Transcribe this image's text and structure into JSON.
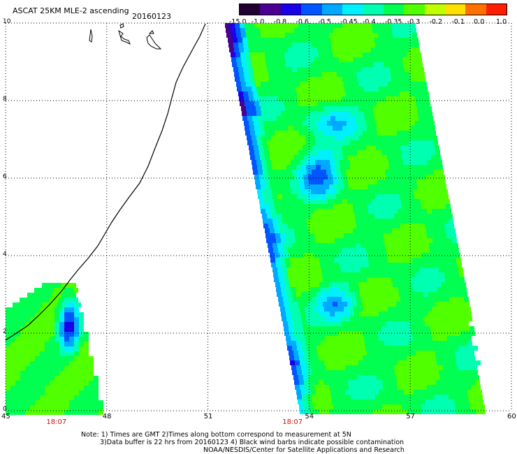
{
  "map": {
    "title": "ASCAT 25KM MLE-2 ascending",
    "date": "20160123",
    "lon_ticks": [
      "45",
      "48",
      "51",
      "54",
      "57",
      "60"
    ],
    "lat_ticks": [
      "0",
      "2",
      "4",
      "6",
      "8",
      "10"
    ],
    "lon_range": [
      45,
      60
    ],
    "lat_range": [
      0,
      10
    ],
    "pass_times": [
      {
        "lon": 46.5,
        "label": "18:07"
      },
      {
        "lon": 53.5,
        "label": "18:07"
      }
    ],
    "time_label_color": "#c0150f",
    "grid": "dotted"
  },
  "colorbar": {
    "labels": [
      "-15.0",
      "-1.0",
      "-0.8",
      "-0.6",
      "-0.5",
      "-0.45",
      "-0.4",
      "-0.35",
      "-0.3",
      "-0.2",
      "-0.1",
      "0.0",
      "1.0"
    ],
    "colors": [
      "#200030",
      "#4a0090",
      "#1a00e6",
      "#0055ff",
      "#00a8ff",
      "#00f0ff",
      "#00ffb0",
      "#00ff50",
      "#50ff00",
      "#c0ff00",
      "#ffe000",
      "#ff7000",
      "#ff1e00"
    ]
  },
  "notes": {
    "line1": "Note: 1) Times are GMT 2)Times along bottom correspond to measurement at 5N",
    "line2": "3)Data buffer is 22 hrs from 20160123 4) Black wind barbs indicate possible contamination",
    "line3": "NOAA/NESDIS/Center for Satellite Applications and Research"
  }
}
